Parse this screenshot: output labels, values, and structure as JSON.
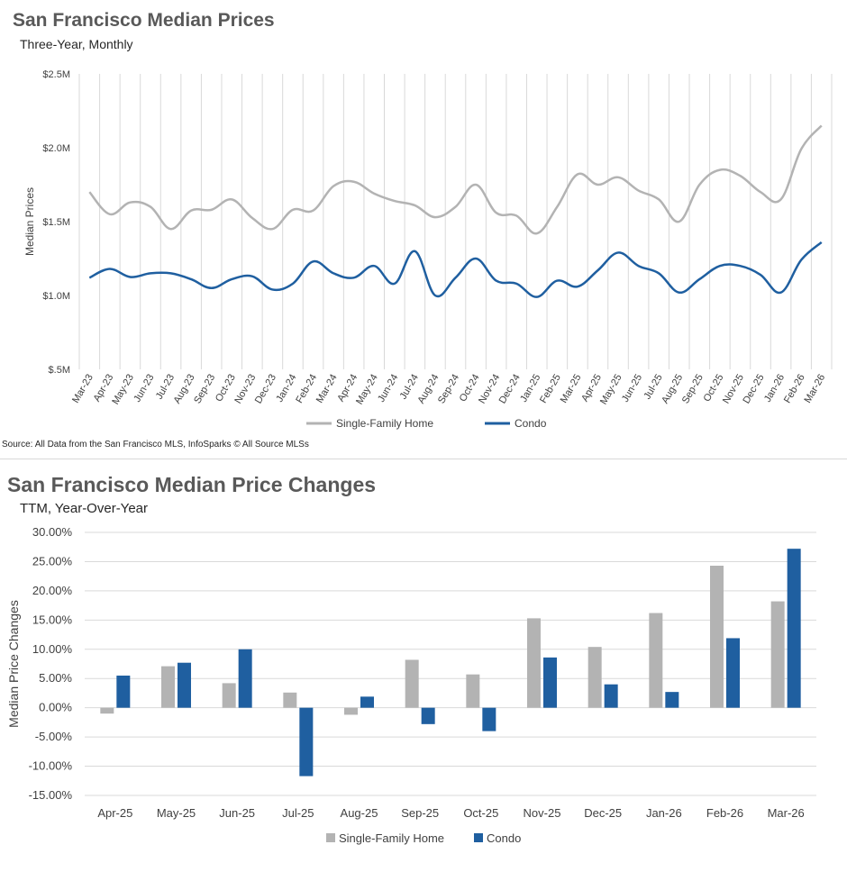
{
  "colors": {
    "sfh": "#b3b3b3",
    "condo": "#1f5fa0",
    "grid": "#d9d9d9"
  },
  "source": "Source: All Data from the San Francisco MLS, InfoSparks © All Source MLSs",
  "chart_data": [
    {
      "type": "line",
      "title": "San Francisco Median Prices",
      "subtitle": "Three-Year, Monthly",
      "xlabel": "",
      "ylabel": "Median Prices",
      "ylim": [
        500000,
        2500000
      ],
      "yticks": [
        500000,
        1000000,
        1500000,
        2000000,
        2500000
      ],
      "ytick_labels": [
        "$.5M",
        "$1.0M",
        "$1.5M",
        "$2.0M",
        "$2.5M"
      ],
      "grid": "vertical",
      "legend": "bottom-center",
      "categories": [
        "Mar-23",
        "Apr-23",
        "May-23",
        "Jun-23",
        "Jul-23",
        "Aug-23",
        "Sep-23",
        "Oct-23",
        "Nov-23",
        "Dec-23",
        "Jan-24",
        "Feb-24",
        "Mar-24",
        "Apr-24",
        "May-24",
        "Jun-24",
        "Jul-24",
        "Aug-24",
        "Sep-24",
        "Oct-24",
        "Nov-24",
        "Dec-24",
        "Jan-25",
        "Feb-25",
        "Mar-25",
        "Apr-25",
        "May-25",
        "Jun-25",
        "Jul-25",
        "Aug-25",
        "Sep-25",
        "Oct-25",
        "Nov-25",
        "Dec-25",
        "Jan-26",
        "Feb-26",
        "Mar-26"
      ],
      "series": [
        {
          "name": "Single-Family Home",
          "values": [
            1700000,
            1550000,
            1630000,
            1600000,
            1450000,
            1575000,
            1580000,
            1650000,
            1525000,
            1450000,
            1580000,
            1575000,
            1740000,
            1770000,
            1690000,
            1640000,
            1610000,
            1530000,
            1600000,
            1750000,
            1560000,
            1540000,
            1420000,
            1600000,
            1820000,
            1750000,
            1800000,
            1710000,
            1650000,
            1500000,
            1750000,
            1850000,
            1810000,
            1700000,
            1650000,
            1990000,
            2150000
          ]
        },
        {
          "name": "Condo",
          "values": [
            1120000,
            1180000,
            1125000,
            1150000,
            1150000,
            1110000,
            1050000,
            1110000,
            1130000,
            1040000,
            1080000,
            1230000,
            1150000,
            1120000,
            1200000,
            1080000,
            1300000,
            1000000,
            1120000,
            1250000,
            1100000,
            1080000,
            990000,
            1100000,
            1060000,
            1170000,
            1290000,
            1200000,
            1150000,
            1020000,
            1110000,
            1200000,
            1200000,
            1140000,
            1020000,
            1240000,
            1360000
          ]
        }
      ]
    },
    {
      "type": "bar",
      "title": "San Francisco Median Price Changes",
      "subtitle": "TTM, Year-Over-Year",
      "xlabel": "",
      "ylabel": "Median Price Changes",
      "ylim": [
        -15,
        30
      ],
      "yticks": [
        -15,
        -10,
        -5,
        0,
        5,
        10,
        15,
        20,
        25,
        30
      ],
      "ytick_labels": [
        "-15.00%",
        "-10.00%",
        "-5.00%",
        "0.00%",
        "5.00%",
        "10.00%",
        "15.00%",
        "20.00%",
        "25.00%",
        "30.00%"
      ],
      "grid": "horizontal",
      "legend": "bottom-center",
      "categories": [
        "Apr-25",
        "May-25",
        "Jun-25",
        "Jul-25",
        "Aug-25",
        "Sep-25",
        "Oct-25",
        "Nov-25",
        "Dec-25",
        "Jan-26",
        "Feb-26",
        "Mar-26"
      ],
      "series": [
        {
          "name": "Single-Family Home",
          "values": [
            -1.0,
            7.1,
            4.2,
            2.6,
            -1.2,
            8.2,
            5.7,
            15.3,
            10.4,
            16.2,
            24.3,
            18.2
          ]
        },
        {
          "name": "Condo",
          "values": [
            5.5,
            7.7,
            10.0,
            -11.7,
            1.9,
            -2.8,
            -4.0,
            8.6,
            4.0,
            2.7,
            11.9,
            27.2
          ]
        }
      ]
    }
  ]
}
